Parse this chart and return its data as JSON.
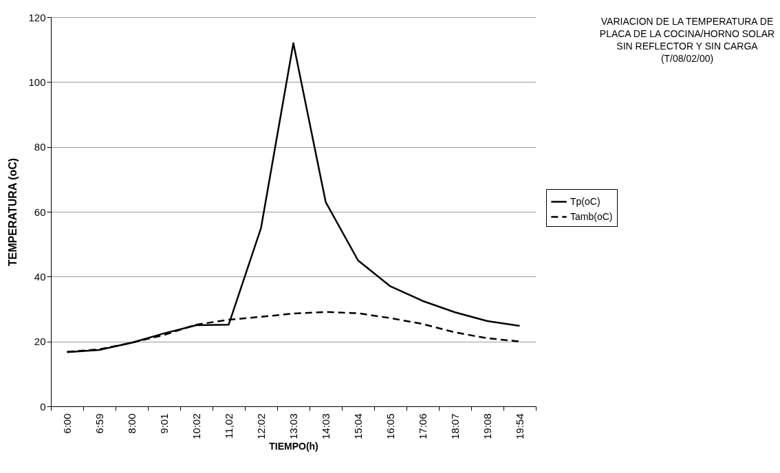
{
  "chart_data": {
    "type": "line",
    "title": "VARIACION DE LA TEMPERATURA DE\nPLACA DE LA COCINA/HORNO SOLAR\nSIN REFLECTOR Y SIN CARGA\n(T/08/02/00)",
    "xlabel": "TIEMPO(h)",
    "ylabel": "TEMPERATURA (oC)",
    "categories": [
      "6:00",
      "6:59",
      "8:00",
      "9:01",
      "10:02",
      "11,02",
      "12:02",
      "13:03",
      "14:03",
      "15:04",
      "16:05",
      "17:06",
      "18:07",
      "19:08",
      "19:54"
    ],
    "series": [
      {
        "name": "Tp(oC)",
        "color": "#000000",
        "line_style": "solid",
        "values": [
          16.7,
          17.4,
          19.6,
          22.5,
          25.0,
          25.2,
          55.0,
          112.0,
          63.0,
          45.0,
          37.0,
          32.5,
          29.0,
          26.3,
          24.8
        ]
      },
      {
        "name": "Tamb(oC)",
        "color": "#000000",
        "line_style": "dashed",
        "values": [
          16.8,
          17.6,
          19.6,
          22.0,
          25.2,
          26.7,
          27.6,
          28.6,
          29.1,
          28.7,
          27.2,
          25.4,
          22.8,
          21.0,
          20.0
        ]
      }
    ],
    "ylim": [
      0,
      120
    ],
    "yticks": [
      0,
      20,
      40,
      60,
      80,
      100,
      120
    ],
    "grid": "y",
    "legend": "right",
    "marker": "none"
  }
}
